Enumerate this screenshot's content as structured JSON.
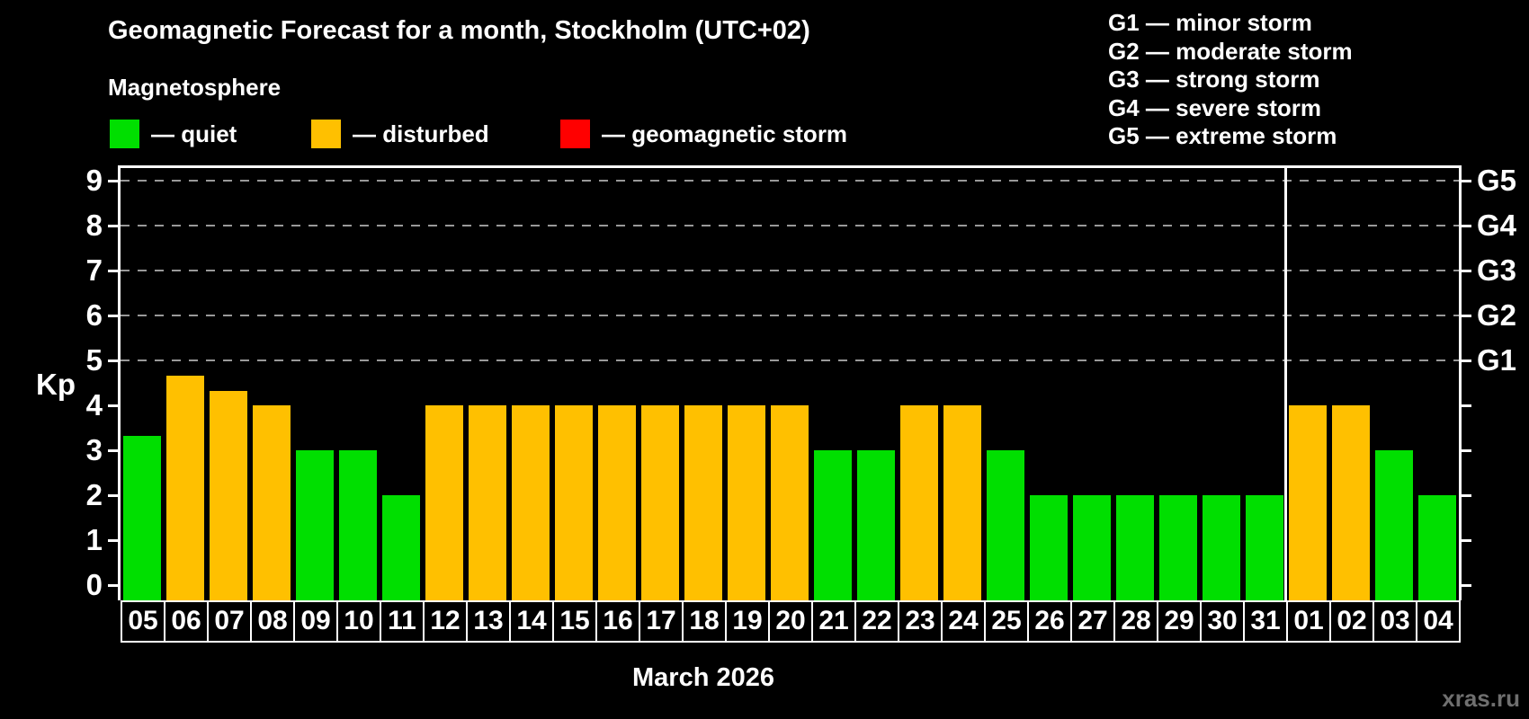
{
  "header": {
    "title": "Geomagnetic Forecast for a month, Stockholm (UTC+02)",
    "subtitle": "Magnetosphere"
  },
  "legend": {
    "items": [
      {
        "kind": "quiet",
        "color": "#00DF00",
        "label": "— quiet"
      },
      {
        "kind": "disturbed",
        "color": "#FFC000",
        "label": "— disturbed"
      },
      {
        "kind": "storm",
        "color": "#FF0000",
        "label": "— geomagnetic storm"
      }
    ]
  },
  "storm_scale_legend": [
    "G1 — minor storm",
    "G2 — moderate storm",
    "G3 — strong storm",
    "G4 — severe storm",
    "G5 — extreme storm"
  ],
  "watermark": "xras.ru",
  "chart_data": {
    "type": "bar",
    "title": "Geomagnetic Forecast for a month, Stockholm (UTC+02)",
    "subtitle": "Magnetosphere",
    "ylabel": "Kp",
    "xlabel": "March 2026",
    "ylim": [
      0,
      9.4
    ],
    "yticks": [
      0,
      1,
      2,
      3,
      4,
      5,
      6,
      7,
      8,
      9
    ],
    "gridline_values": [
      5,
      6,
      7,
      8,
      9
    ],
    "grid_on": true,
    "legend_position": "top",
    "right_axis_labels": [
      {
        "value": 5,
        "label": "G1"
      },
      {
        "value": 6,
        "label": "G2"
      },
      {
        "value": 7,
        "label": "G3"
      },
      {
        "value": 8,
        "label": "G4"
      },
      {
        "value": 9,
        "label": "G5"
      }
    ],
    "categories": [
      "05",
      "06",
      "07",
      "08",
      "09",
      "10",
      "11",
      "12",
      "13",
      "14",
      "15",
      "16",
      "17",
      "18",
      "19",
      "20",
      "21",
      "22",
      "23",
      "24",
      "25",
      "26",
      "27",
      "28",
      "29",
      "30",
      "31",
      "01",
      "02",
      "03",
      "04"
    ],
    "values": [
      3.33,
      4.67,
      4.33,
      4,
      3,
      3,
      2,
      4,
      4,
      4,
      4,
      4,
      4,
      4,
      4,
      4,
      3,
      3,
      4,
      4,
      3,
      2,
      2,
      2,
      2,
      2,
      2,
      4,
      4,
      3,
      2
    ],
    "kinds": [
      "quiet",
      "disturbed",
      "disturbed",
      "disturbed",
      "quiet",
      "quiet",
      "quiet",
      "disturbed",
      "disturbed",
      "disturbed",
      "disturbed",
      "disturbed",
      "disturbed",
      "disturbed",
      "disturbed",
      "disturbed",
      "quiet",
      "quiet",
      "disturbed",
      "disturbed",
      "quiet",
      "quiet",
      "quiet",
      "quiet",
      "quiet",
      "quiet",
      "quiet",
      "disturbed",
      "disturbed",
      "quiet",
      "quiet"
    ],
    "month_separator_after_index": 26,
    "colors": {
      "quiet": "#00DF00",
      "disturbed": "#FFC000",
      "storm": "#FF0000"
    },
    "grid_color": "#999999",
    "axis_color": "#FFFFFF",
    "background": "#000000"
  }
}
